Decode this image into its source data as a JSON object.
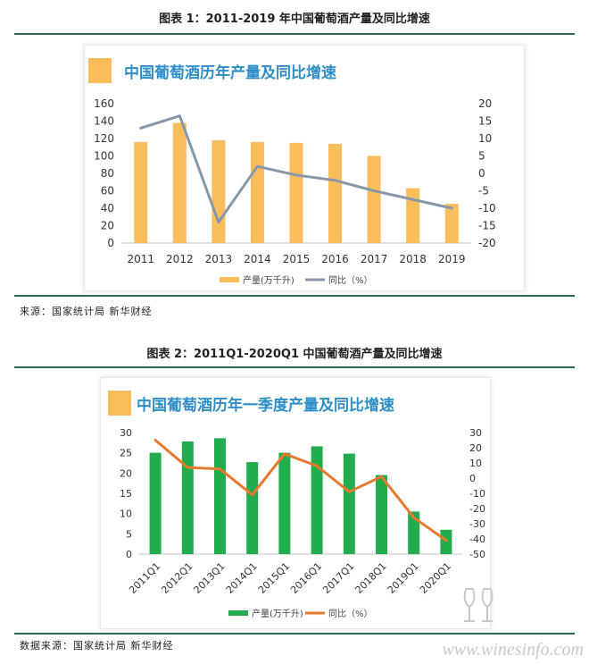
{
  "figure1": {
    "caption": "图表 1：2011-2019 年中国葡萄酒产量及同比增速",
    "source": "来源：国家统计局 新华财经"
  },
  "figure2": {
    "caption": "图表 2：2011Q1-2020Q1 中国葡萄酒产量及同比增速",
    "source": "数据来源：国家统计局 新华财经"
  },
  "watermark": "www.winesinfo.com",
  "colors": {
    "bar1": "#f9be5b",
    "line1": "#8597a8",
    "bar2": "#22ac4d",
    "line2": "#e8792f",
    "title_blue": "#2e8ec7",
    "rule": "#2e6b52"
  },
  "chart_data": [
    {
      "type": "bar",
      "title": "中国葡萄酒历年产量及同比增速",
      "categories": [
        "2011",
        "2012",
        "2013",
        "2014",
        "2015",
        "2016",
        "2017",
        "2018",
        "2019"
      ],
      "series": [
        {
          "name": "产量(万千升)",
          "type": "bar",
          "axis": "left",
          "values": [
            116,
            138,
            118,
            116,
            115,
            114,
            100,
            63,
            45
          ]
        },
        {
          "name": "同比（%）",
          "type": "line",
          "axis": "right",
          "values": [
            13.0,
            16.5,
            -14.0,
            2.0,
            -0.5,
            -2.0,
            -5.0,
            -7.5,
            -10.0
          ]
        }
      ],
      "ylim_left": [
        0,
        160
      ],
      "yticks_left": [
        "0",
        "20",
        "40",
        "60",
        "80",
        "100",
        "120",
        "140",
        "160"
      ],
      "ylim_right": [
        -20,
        20
      ],
      "yticks_right": [
        "-20",
        "-15",
        "-10",
        "-5",
        "0",
        "5",
        "10",
        "15",
        "20"
      ],
      "legend": "bottom",
      "grid": false
    },
    {
      "type": "bar",
      "title": "中国葡萄酒历年一季度产量及同比增速",
      "categories": [
        "2011Q1",
        "2012Q1",
        "2013Q1",
        "2014Q1",
        "2015Q1",
        "2016Q1",
        "2017Q1",
        "2018Q1",
        "2019Q1",
        "2020Q1"
      ],
      "series": [
        {
          "name": "产量(万千升)",
          "type": "bar",
          "axis": "left",
          "values": [
            25.0,
            27.8,
            28.6,
            22.7,
            25.0,
            26.6,
            24.8,
            19.5,
            10.5,
            6.0
          ]
        },
        {
          "name": "同比（%）",
          "type": "line",
          "axis": "right",
          "values": [
            25,
            7,
            6,
            -11,
            16,
            8,
            -9,
            1,
            -26,
            -41
          ]
        }
      ],
      "ylim_left": [
        0,
        30
      ],
      "yticks_left": [
        "0",
        "5",
        "10",
        "15",
        "20",
        "25",
        "30"
      ],
      "ylim_right": [
        -50,
        30
      ],
      "yticks_right": [
        "-50",
        "-40",
        "-30",
        "-20",
        "-10",
        "0",
        "10",
        "20",
        "30"
      ],
      "legend": "bottom",
      "grid": false
    }
  ]
}
